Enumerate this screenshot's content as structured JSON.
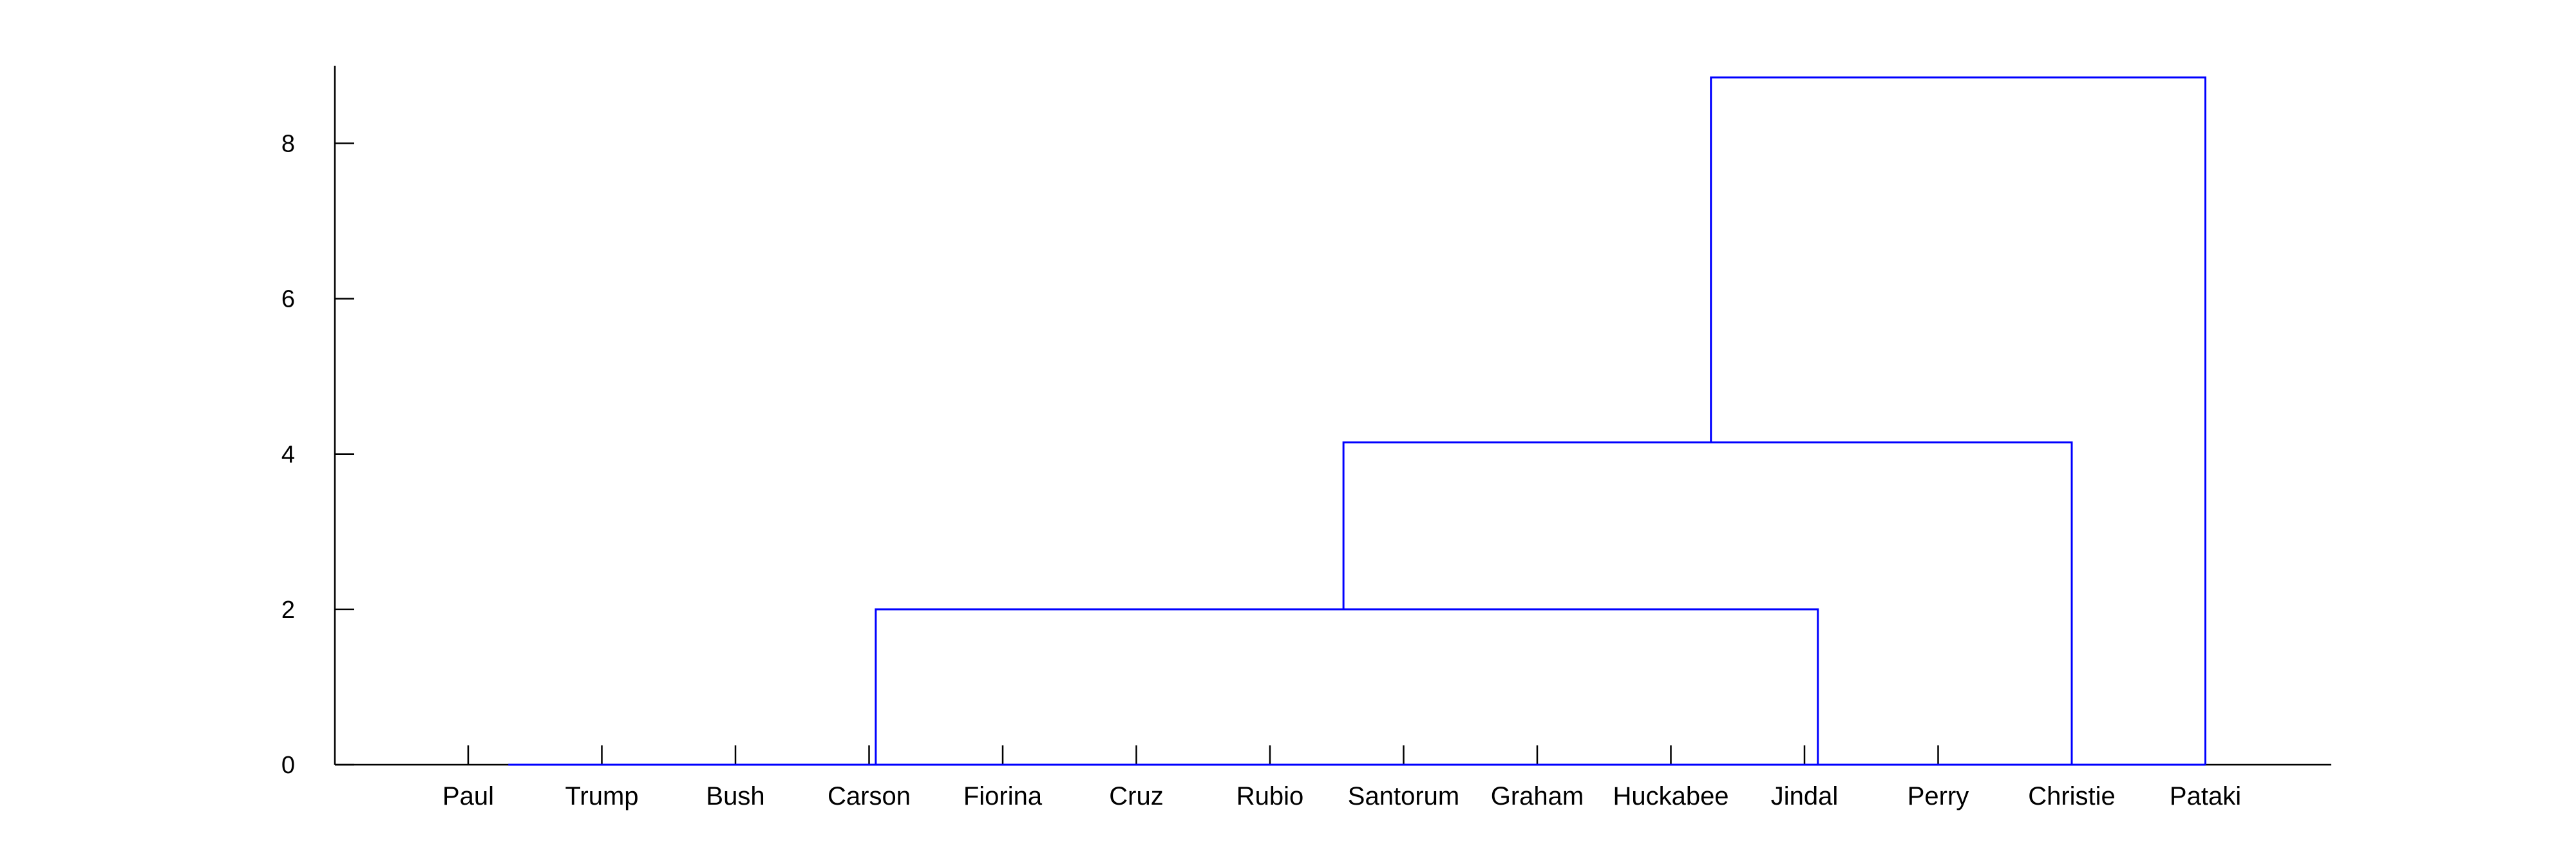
{
  "chart_data": {
    "type": "dendrogram",
    "title": "",
    "xlabel": "",
    "ylabel": "",
    "ylim": [
      0,
      9
    ],
    "yticks": [
      0,
      2,
      4,
      6,
      8
    ],
    "ytick_labels": [
      "0",
      "2",
      "4",
      "6",
      "8"
    ],
    "leaves": [
      "Paul",
      "Trump",
      "Bush",
      "Carson",
      "Fiorina",
      "Cruz",
      "Rubio",
      "Santorum",
      "Graham",
      "Huckabee",
      "Jindal",
      "Perry",
      "Christie",
      "Pataki"
    ],
    "merges": [
      {
        "left": 3.05,
        "right": 10.1,
        "height": 2.0,
        "left_height": 0.0,
        "right_height": 0.0
      },
      {
        "left": 6.55,
        "right": 12.0,
        "height": 4.15,
        "left_height": 2.0,
        "right_height": 0.0
      },
      {
        "left": 9.3,
        "right": 13.0,
        "height": 8.85,
        "left_height": 4.15,
        "right_height": 0.0
      }
    ],
    "baseline": {
      "from": 0.3,
      "to": 13.0,
      "height": 0.0
    },
    "grid": false,
    "legend": "none",
    "colors": {
      "links": "#0000ff",
      "axes": "#000000"
    }
  }
}
